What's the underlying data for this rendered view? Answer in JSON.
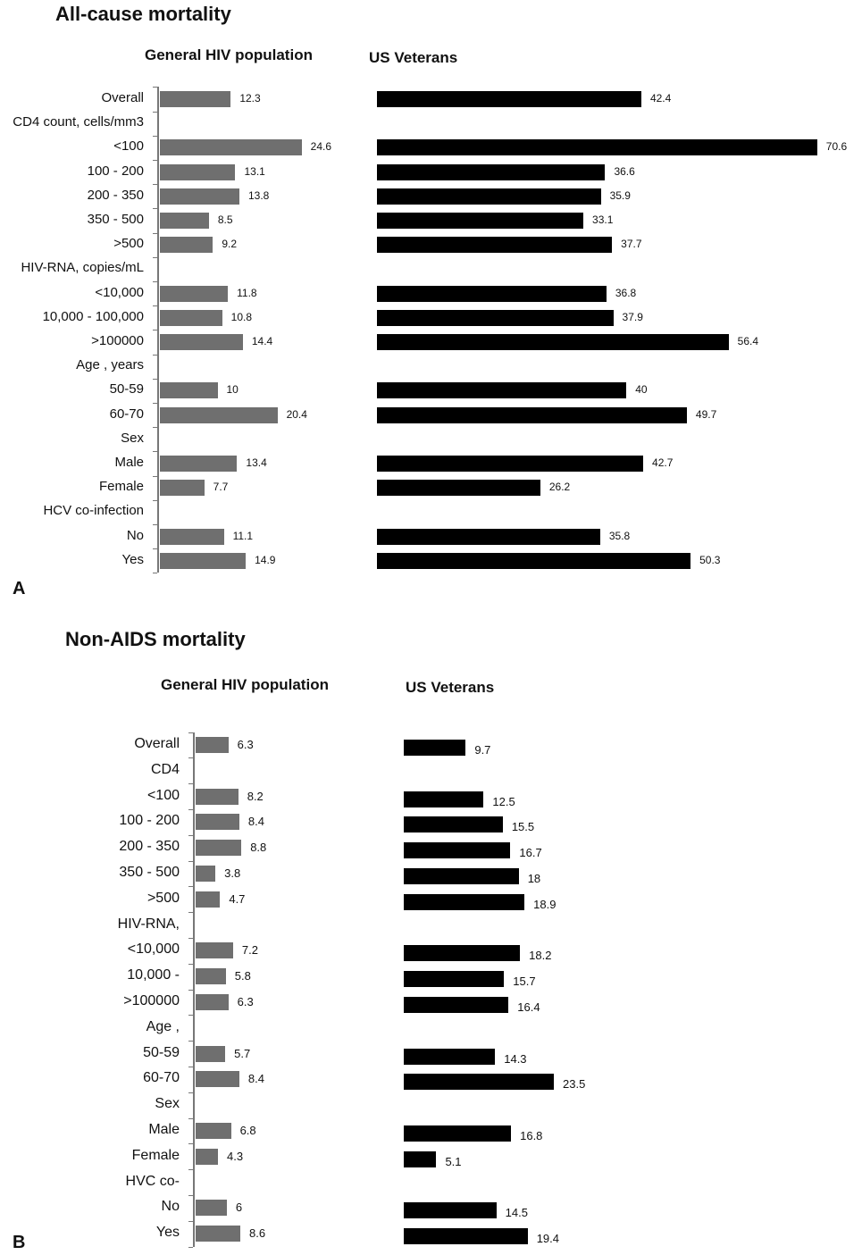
{
  "colors": {
    "general_bar": "#6f6f6f",
    "veterans_bar": "#000000"
  },
  "chart_data": [
    {
      "type": "bar",
      "orientation": "horizontal",
      "panel": "A",
      "title": "All-cause mortality",
      "categories": [
        "Overall",
        "CD4 count, cells/mm3",
        "<100",
        "100 - 200",
        "200 - 350",
        "350 - 500",
        ">500",
        "HIV-RNA, copies/mL",
        "<10,000",
        "10,000 - 100,000",
        ">100000",
        "Age , years",
        "50-59",
        "60-70",
        "Sex",
        "Male",
        "Female",
        "HCV co-infection",
        "No",
        "Yes"
      ],
      "series": [
        {
          "name": "General HIV population",
          "values": [
            12.3,
            null,
            24.6,
            13.1,
            13.8,
            8.5,
            9.2,
            null,
            11.8,
            10.8,
            14.4,
            null,
            10,
            20.4,
            null,
            13.4,
            7.7,
            null,
            11.1,
            14.9
          ]
        },
        {
          "name": "US Veterans",
          "values": [
            42.4,
            null,
            70.6,
            36.6,
            35.9,
            33.1,
            37.7,
            null,
            36.8,
            37.9,
            56.4,
            null,
            40,
            49.7,
            null,
            42.7,
            26.2,
            null,
            35.8,
            50.3
          ]
        }
      ],
      "grid": false
    },
    {
      "type": "bar",
      "orientation": "horizontal",
      "panel": "B",
      "title": "Non-AIDS mortality",
      "categories": [
        "Overall",
        "CD4",
        "<100",
        "100 - 200",
        "200 - 350",
        "350 - 500",
        ">500",
        "HIV-RNA,",
        "<10,000",
        "10,000 -",
        ">100000",
        "Age ,",
        "50-59",
        "60-70",
        "Sex",
        "Male",
        "Female",
        "HVC co-",
        "No",
        "Yes"
      ],
      "series": [
        {
          "name": "General HIV population",
          "values": [
            6.3,
            null,
            8.2,
            8.4,
            8.8,
            3.8,
            4.7,
            null,
            7.2,
            5.8,
            6.3,
            null,
            5.7,
            8.4,
            null,
            6.8,
            4.3,
            null,
            6,
            8.6
          ]
        },
        {
          "name": "US Veterans",
          "values": [
            9.7,
            null,
            12.5,
            15.5,
            16.7,
            18,
            18.9,
            null,
            18.2,
            15.7,
            16.4,
            null,
            14.3,
            23.5,
            null,
            16.8,
            5.1,
            null,
            14.5,
            19.4
          ]
        }
      ],
      "grid": false
    }
  ]
}
